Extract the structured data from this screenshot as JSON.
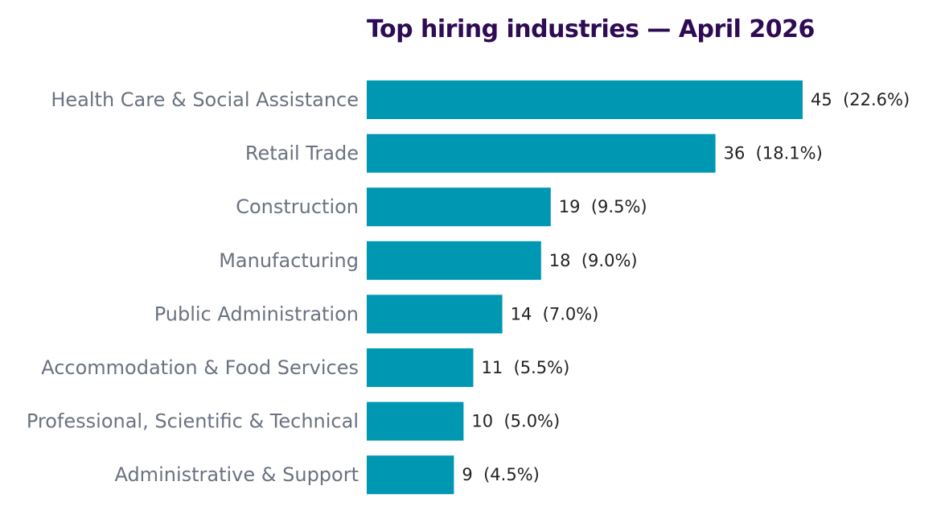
{
  "chart_data": {
    "type": "bar",
    "orientation": "horizontal",
    "title": "Top hiring industries — April 2026",
    "xlabel": "",
    "ylabel": "",
    "categories": [
      "Health Care & Social Assistance",
      "Retail Trade",
      "Construction",
      "Manufacturing",
      "Public Administration",
      "Accommodation & Food Services",
      "Professional, Scientific & Technical",
      "Administrative & Support"
    ],
    "values": [
      45,
      36,
      19,
      18,
      14,
      11,
      10,
      9
    ],
    "data_labels": [
      "45  (22.6%)",
      "36  (18.1%)",
      "19  (9.5%)",
      "18  (9.0%)",
      "14  (7.0%)",
      "11  (5.5%)",
      "10  (5.0%)",
      "9  (4.5%)"
    ],
    "xlim": [
      0,
      45
    ],
    "grid": false,
    "legend": "none",
    "colors": {
      "bar": "#0097b2",
      "title": "#2e0b54",
      "category_label": "#6b7280",
      "data_label": "#222222"
    }
  }
}
